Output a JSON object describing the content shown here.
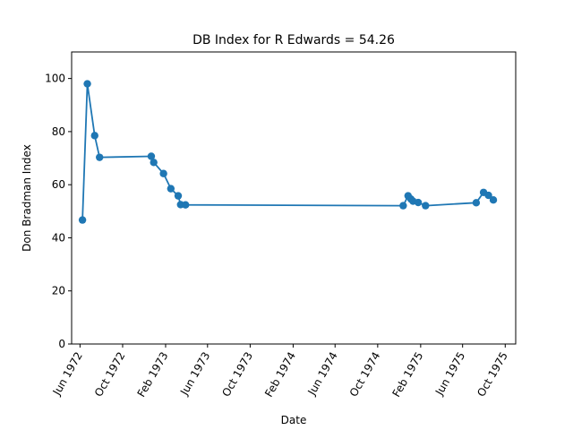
{
  "chart_data": {
    "type": "line",
    "title": "DB Index for R Edwards = 54.26",
    "xlabel": "Date",
    "ylabel": "Don Bradman Index",
    "ylim": [
      0,
      110
    ],
    "xlim": [
      "1972-05-08",
      "1975-10-31"
    ],
    "yticks": [
      0,
      20,
      40,
      60,
      80,
      100
    ],
    "xticks": [
      {
        "date": "1972-06-01",
        "label": "Jun 1972"
      },
      {
        "date": "1972-10-01",
        "label": "Oct 1972"
      },
      {
        "date": "1973-02-01",
        "label": "Feb 1973"
      },
      {
        "date": "1973-06-01",
        "label": "Jun 1973"
      },
      {
        "date": "1973-10-01",
        "label": "Oct 1973"
      },
      {
        "date": "1974-02-01",
        "label": "Feb 1974"
      },
      {
        "date": "1974-06-01",
        "label": "Jun 1974"
      },
      {
        "date": "1974-10-01",
        "label": "Oct 1974"
      },
      {
        "date": "1975-02-01",
        "label": "Feb 1975"
      },
      {
        "date": "1975-06-01",
        "label": "Jun 1975"
      },
      {
        "date": "1975-10-01",
        "label": "Oct 1975"
      }
    ],
    "grid": false,
    "color": "#1f77b4",
    "series": [
      {
        "points": [
          {
            "x": "1972-06-08",
            "y": 46.7
          },
          {
            "x": "1972-06-22",
            "y": 98.0
          },
          {
            "x": "1972-07-13",
            "y": 78.5
          },
          {
            "x": "1972-07-27",
            "y": 70.3
          },
          {
            "x": "1972-12-22",
            "y": 70.7
          },
          {
            "x": "1972-12-29",
            "y": 68.4
          },
          {
            "x": "1973-01-26",
            "y": 64.2
          },
          {
            "x": "1973-02-16",
            "y": 58.5
          },
          {
            "x": "1973-03-09",
            "y": 55.8
          },
          {
            "x": "1973-03-16",
            "y": 52.5
          },
          {
            "x": "1973-03-30",
            "y": 52.4
          },
          {
            "x": "1974-12-13",
            "y": 52.1
          },
          {
            "x": "1974-12-27",
            "y": 55.8
          },
          {
            "x": "1975-01-04",
            "y": 54.6
          },
          {
            "x": "1975-01-10",
            "y": 53.8
          },
          {
            "x": "1975-01-25",
            "y": 53.3
          },
          {
            "x": "1975-02-15",
            "y": 52.1
          },
          {
            "x": "1975-07-10",
            "y": 53.2
          },
          {
            "x": "1975-07-31",
            "y": 57.1
          },
          {
            "x": "1975-08-14",
            "y": 56.0
          },
          {
            "x": "1975-08-28",
            "y": 54.26
          }
        ]
      }
    ]
  }
}
